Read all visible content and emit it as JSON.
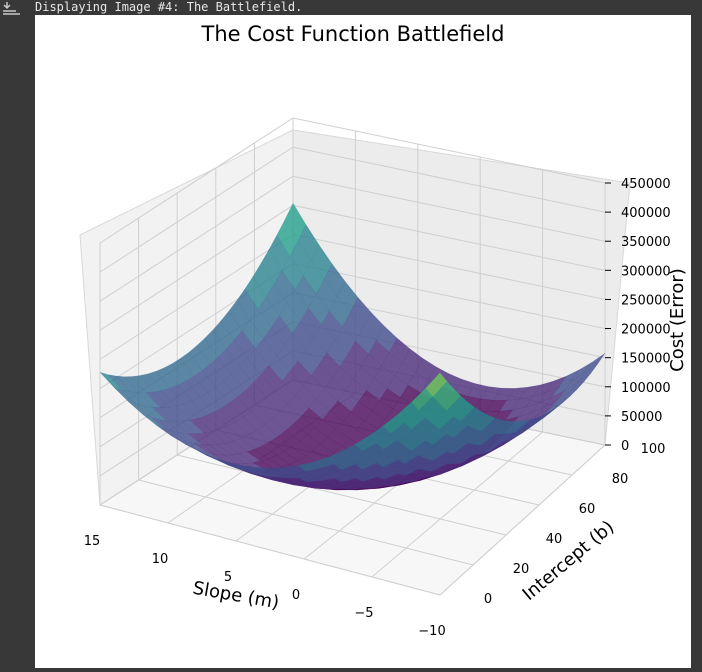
{
  "output": {
    "status_text": "Displaying Image #4: The Battlefield.",
    "icon": "output-expand-icon"
  },
  "chart_data": {
    "type": "surface3d",
    "title": "The Cost Function Battlefield",
    "xlabel": "Slope (m)",
    "ylabel": "Intercept (b)",
    "zlabel": "Cost (Error)",
    "x_ticks": [
      15,
      10,
      5,
      0,
      -5,
      -10
    ],
    "y_ticks": [
      0,
      20,
      40,
      60,
      80,
      100
    ],
    "z_ticks": [
      0,
      50000,
      100000,
      150000,
      200000,
      250000,
      300000,
      350000,
      400000,
      450000
    ],
    "x_tick_labels": [
      "15",
      "10",
      "5",
      "0",
      "−5",
      "−10"
    ],
    "y_tick_labels": [
      "0",
      "20",
      "40",
      "60",
      "80",
      "100"
    ],
    "z_tick_labels": [
      "0",
      "50000",
      "100000",
      "150000",
      "200000",
      "250000",
      "300000",
      "350000",
      "400000",
      "450000"
    ],
    "xlim": [
      -10,
      15
    ],
    "ylim": [
      0,
      100
    ],
    "zlim": [
      0,
      450000
    ],
    "colormap": "viridis",
    "surface_corners": [
      {
        "m": 15,
        "b": 100,
        "cost": 300000
      },
      {
        "m": 15,
        "b": 0,
        "cost": 300000
      },
      {
        "m": -10,
        "b": 0,
        "cost": 450000
      },
      {
        "m": -10,
        "b": 100,
        "cost": 190000
      }
    ],
    "minimum": {
      "m": 2,
      "b": 60,
      "cost": 0
    },
    "grid": true
  }
}
